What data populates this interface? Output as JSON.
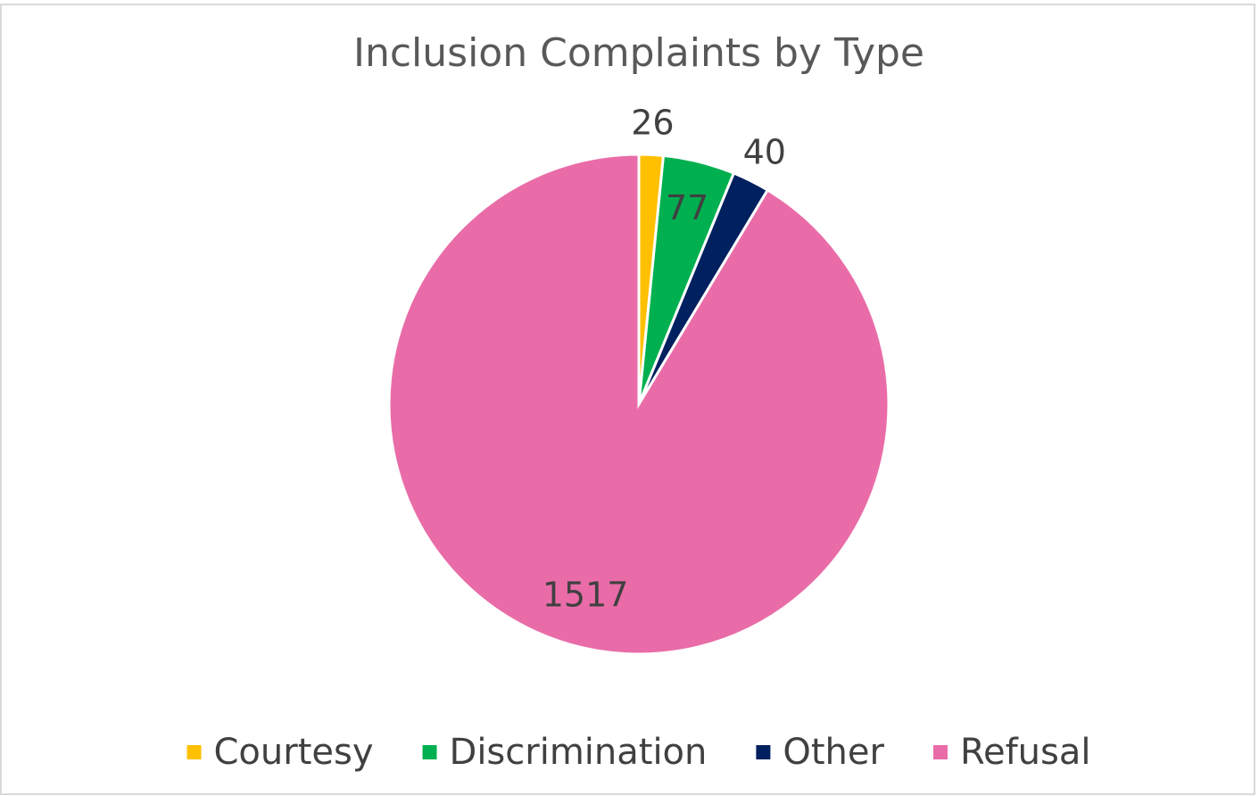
{
  "chart_data": {
    "type": "pie",
    "title": "Inclusion Complaints by Type",
    "categories": [
      "Courtesy",
      "Discrimination",
      "Other",
      "Refusal"
    ],
    "values": [
      26,
      77,
      40,
      1517
    ],
    "colors": [
      "#FFC000",
      "#00B050",
      "#002060",
      "#E96CA8"
    ],
    "legend": "bottom"
  }
}
